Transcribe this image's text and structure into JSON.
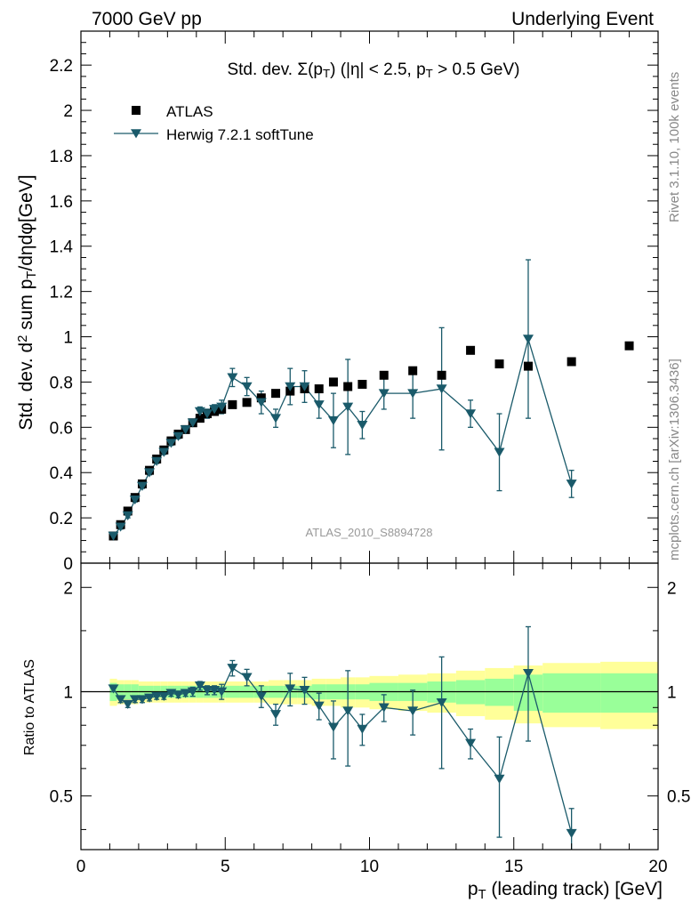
{
  "header": {
    "left": "7000 GeV pp",
    "right": "Underlying Event"
  },
  "side_labels": {
    "rivet": "Rivet 3.1.10,  100k events",
    "mcplots": "mcplots.cern.ch [arXiv:1306.3436]"
  },
  "watermark": "ATLAS_2010_S8894728",
  "plot_title": "Std. dev. Σ(p_T) (|η| < 2.5, p_T > 0.5 GeV)",
  "colors": {
    "data": "#000000",
    "mc": "#1a5a6a",
    "band_inner": "#99ff99",
    "band_outer": "#ffff99"
  },
  "chart_data": [
    {
      "type": "scatter",
      "panel": "main",
      "ylabel": "Std. dev. d² sum p_T/dηdφ[GeV]",
      "xlim": [
        0,
        20
      ],
      "ylim": [
        0,
        2.35
      ],
      "yticks": [
        "0",
        "0.2",
        "0.4",
        "0.6",
        "0.8",
        "1",
        "1.2",
        "1.4",
        "1.6",
        "1.8",
        "2",
        "2.2"
      ],
      "legend_position": "top-left",
      "series": [
        {
          "name": "ATLAS",
          "marker": "square",
          "x": [
            1.125,
            1.375,
            1.625,
            1.875,
            2.125,
            2.375,
            2.625,
            2.875,
            3.125,
            3.375,
            3.625,
            3.875,
            4.125,
            4.375,
            4.625,
            4.875,
            5.25,
            5.75,
            6.25,
            6.75,
            7.25,
            7.75,
            8.25,
            8.75,
            9.25,
            9.75,
            10.5,
            11.5,
            12.5,
            13.5,
            14.5,
            15.5,
            17,
            19
          ],
          "y": [
            0.12,
            0.17,
            0.23,
            0.29,
            0.35,
            0.41,
            0.46,
            0.5,
            0.54,
            0.57,
            0.59,
            0.62,
            0.64,
            0.66,
            0.67,
            0.68,
            0.7,
            0.71,
            0.73,
            0.75,
            0.76,
            0.77,
            0.77,
            0.8,
            0.78,
            0.79,
            0.83,
            0.85,
            0.83,
            0.94,
            0.88,
            0.87,
            0.89,
            0.96
          ]
        },
        {
          "name": "Herwig 7.2.1 softTune",
          "marker": "triangle-down",
          "x": [
            1.125,
            1.375,
            1.625,
            1.875,
            2.125,
            2.375,
            2.625,
            2.875,
            3.125,
            3.375,
            3.625,
            3.875,
            4.125,
            4.375,
            4.625,
            4.875,
            5.25,
            5.75,
            6.25,
            6.75,
            7.25,
            7.75,
            8.25,
            8.75,
            9.25,
            9.75,
            10.5,
            11.5,
            12.5,
            13.5,
            14.5,
            15.5,
            17
          ],
          "y": [
            0.12,
            0.16,
            0.21,
            0.28,
            0.34,
            0.4,
            0.45,
            0.49,
            0.53,
            0.56,
            0.59,
            0.62,
            0.67,
            0.66,
            0.68,
            0.69,
            0.82,
            0.78,
            0.71,
            0.64,
            0.78,
            0.78,
            0.7,
            0.63,
            0.69,
            0.61,
            0.75,
            0.75,
            0.77,
            0.66,
            0.49,
            0.99,
            0.35
          ],
          "err": [
            0.01,
            0.01,
            0.01,
            0.01,
            0.01,
            0.01,
            0.01,
            0.01,
            0.01,
            0.01,
            0.01,
            0.015,
            0.02,
            0.02,
            0.02,
            0.03,
            0.04,
            0.04,
            0.05,
            0.04,
            0.08,
            0.07,
            0.06,
            0.12,
            0.21,
            0.06,
            0.07,
            0.11,
            0.27,
            0.06,
            0.17,
            0.35,
            0.06
          ]
        }
      ]
    },
    {
      "type": "scatter",
      "panel": "ratio",
      "ylabel": "Ratio to ATLAS",
      "xlabel": "p_T (leading track) [GeV]",
      "xlim": [
        0,
        20
      ],
      "ylim": [
        0.35,
        2.35
      ],
      "xticks": [
        "0",
        "5",
        "10",
        "15",
        "20"
      ],
      "yticks": [
        "0.5",
        "1",
        "2"
      ],
      "x": [
        1.125,
        1.375,
        1.625,
        1.875,
        2.125,
        2.375,
        2.625,
        2.875,
        3.125,
        3.375,
        3.625,
        3.875,
        4.125,
        4.375,
        4.625,
        4.875,
        5.25,
        5.75,
        6.25,
        6.75,
        7.25,
        7.75,
        8.25,
        8.75,
        9.25,
        9.75,
        10.5,
        11.5,
        12.5,
        13.5,
        14.5,
        15.5,
        17
      ],
      "ratio": [
        1.02,
        0.95,
        0.92,
        0.95,
        0.95,
        0.96,
        0.97,
        0.97,
        0.99,
        0.98,
        0.99,
        1.0,
        1.04,
        1.01,
        1.01,
        1.0,
        1.17,
        1.1,
        0.97,
        0.86,
        1.02,
        1.01,
        0.91,
        0.79,
        0.88,
        0.78,
        0.9,
        0.88,
        0.93,
        0.71,
        0.56,
        1.13,
        0.39
      ],
      "ratio_err": [
        0.02,
        0.02,
        0.02,
        0.02,
        0.02,
        0.02,
        0.02,
        0.02,
        0.02,
        0.02,
        0.02,
        0.03,
        0.03,
        0.03,
        0.03,
        0.05,
        0.06,
        0.06,
        0.07,
        0.06,
        0.11,
        0.09,
        0.08,
        0.15,
        0.27,
        0.08,
        0.08,
        0.13,
        0.33,
        0.07,
        0.18,
        0.41,
        0.07
      ],
      "band_edges": [
        1,
        1.25,
        1.5,
        1.75,
        2,
        2.25,
        2.5,
        2.75,
        3,
        3.25,
        3.5,
        3.75,
        4,
        4.25,
        4.5,
        4.75,
        5,
        5.5,
        6,
        6.5,
        7,
        7.5,
        8,
        8.5,
        9,
        9.5,
        10,
        11,
        12,
        13,
        14,
        15,
        16,
        18,
        20
      ],
      "band_inner": [
        0.06,
        0.05,
        0.05,
        0.05,
        0.04,
        0.04,
        0.04,
        0.04,
        0.04,
        0.04,
        0.04,
        0.04,
        0.04,
        0.04,
        0.04,
        0.04,
        0.04,
        0.04,
        0.04,
        0.04,
        0.04,
        0.04,
        0.05,
        0.05,
        0.05,
        0.05,
        0.06,
        0.06,
        0.07,
        0.08,
        0.09,
        0.12,
        0.13,
        0.13
      ],
      "band_outer": [
        0.09,
        0.08,
        0.08,
        0.08,
        0.07,
        0.07,
        0.07,
        0.07,
        0.07,
        0.07,
        0.07,
        0.07,
        0.07,
        0.07,
        0.07,
        0.07,
        0.07,
        0.07,
        0.07,
        0.08,
        0.08,
        0.08,
        0.09,
        0.09,
        0.1,
        0.1,
        0.11,
        0.12,
        0.13,
        0.15,
        0.17,
        0.19,
        0.21,
        0.22
      ]
    }
  ]
}
